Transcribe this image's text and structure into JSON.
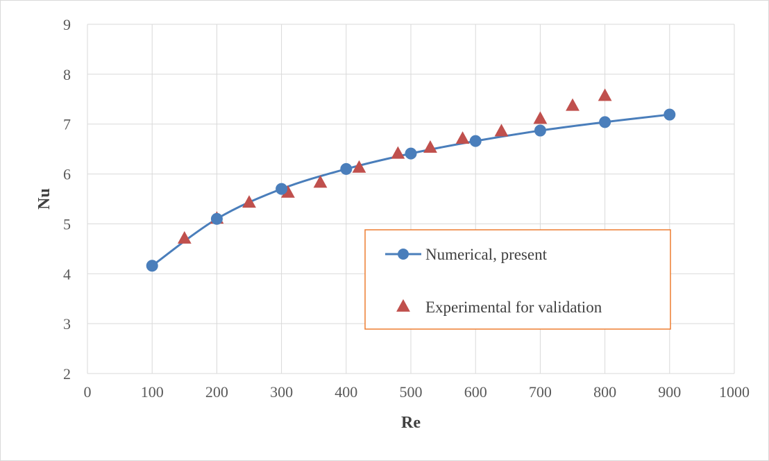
{
  "chart_data": {
    "type": "scatter",
    "title": "",
    "xlabel": "Re",
    "ylabel": "Nu",
    "xlim": [
      0,
      1000
    ],
    "ylim": [
      2,
      9
    ],
    "xticks": [
      0,
      100,
      200,
      300,
      400,
      500,
      600,
      700,
      800,
      900,
      1000
    ],
    "yticks": [
      2,
      3,
      4,
      5,
      6,
      7,
      8,
      9
    ],
    "grid": true,
    "legend_position": "center-right",
    "series": [
      {
        "name": "Numerical, present",
        "style": "line-with-circle-markers",
        "color": "#4a7ebb",
        "x": [
          100,
          200,
          300,
          400,
          500,
          600,
          700,
          800,
          900
        ],
        "y": [
          4.16,
          5.1,
          5.7,
          6.1,
          6.41,
          6.66,
          6.87,
          7.04,
          7.19
        ]
      },
      {
        "name": "Experimental for validation",
        "style": "triangle-markers",
        "color": "#c0504d",
        "x": [
          150,
          200,
          250,
          310,
          360,
          420,
          480,
          530,
          580,
          640,
          700,
          750,
          800
        ],
        "y": [
          4.7,
          5.1,
          5.42,
          5.62,
          5.82,
          6.12,
          6.4,
          6.52,
          6.7,
          6.85,
          7.1,
          7.36,
          7.56
        ]
      }
    ]
  }
}
